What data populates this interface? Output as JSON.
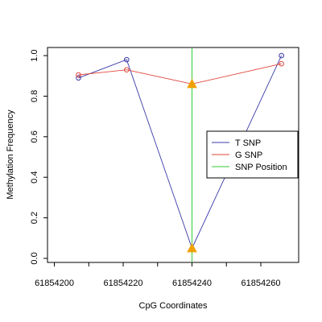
{
  "chart_data": {
    "type": "line",
    "xlabel": "CpG Coordinates",
    "ylabel": "Methylation Frequency",
    "xlim": [
      61854198,
      61854271
    ],
    "ylim": [
      -0.02,
      1.04
    ],
    "x_ticks": [
      61854200,
      61854220,
      61854240,
      61854260
    ],
    "x_tick_labels": [
      "61854200",
      "61854220",
      "61854240",
      "61854260"
    ],
    "y_ticks": [
      0.0,
      0.2,
      0.4,
      0.6,
      0.8,
      1.0
    ],
    "y_tick_labels": [
      "0.0",
      "0.2",
      "0.4",
      "0.6",
      "0.8",
      "1.0"
    ],
    "grid": false,
    "legend_position": "right",
    "series": [
      {
        "name": "T SNP",
        "color": "#3a3aa8",
        "x": [
          61854207,
          61854221,
          61854240,
          61854266
        ],
        "values": [
          0.89,
          0.98,
          0.05,
          1.0
        ],
        "marker_points": [
          [
            61854207,
            0.89
          ],
          [
            61854221,
            0.98
          ],
          [
            61854266,
            1.0
          ]
        ]
      },
      {
        "name": "G SNP",
        "color": "#e0453a",
        "x": [
          61854207,
          61854221,
          61854240,
          61854266
        ],
        "values": [
          0.905,
          0.93,
          0.86,
          0.96
        ],
        "marker_points": [
          [
            61854207,
            0.905
          ],
          [
            61854221,
            0.93
          ],
          [
            61854266,
            0.96
          ]
        ]
      }
    ],
    "snp_position": {
      "name": "SNP Position",
      "x": 61854240,
      "color": "#33cc33"
    },
    "snp_markers": {
      "color": "#f0a000",
      "points": [
        [
          61854240,
          0.86
        ],
        [
          61854240,
          0.05
        ]
      ]
    }
  }
}
